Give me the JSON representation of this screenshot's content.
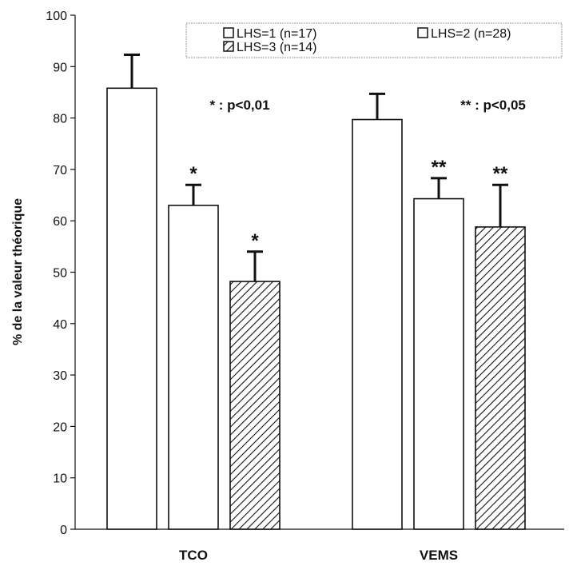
{
  "chart_data": {
    "type": "bar",
    "title": "",
    "xlabel": "",
    "ylabel": "% de la valeur théorique",
    "ylim": [
      0,
      100
    ],
    "yticks": [
      0,
      10,
      20,
      30,
      40,
      50,
      60,
      70,
      80,
      90,
      100
    ],
    "grid": false,
    "legend_position": "top-right",
    "categories": [
      "TCO",
      "VEMS"
    ],
    "series": [
      {
        "name": "LHS=1 (n=17)",
        "values": [
          85.8,
          79.7
        ],
        "errors": [
          6.5,
          5.0
        ],
        "markers": [
          "",
          ""
        ],
        "pattern": "white"
      },
      {
        "name": "LHS=2 (n=28)",
        "values": [
          63.0,
          64.3
        ],
        "errors": [
          4.0,
          4.0
        ],
        "markers": [
          "*",
          "**"
        ],
        "pattern": "white"
      },
      {
        "name": "LHS=3 (n=14)",
        "values": [
          48.2,
          58.8
        ],
        "errors": [
          5.8,
          8.2
        ],
        "markers": [
          "*",
          "**"
        ],
        "pattern": "hatch"
      }
    ],
    "annotations": [
      {
        "category": "TCO",
        "text": "* : p<0,01"
      },
      {
        "category": "VEMS",
        "text": "** : p<0,05"
      }
    ]
  }
}
